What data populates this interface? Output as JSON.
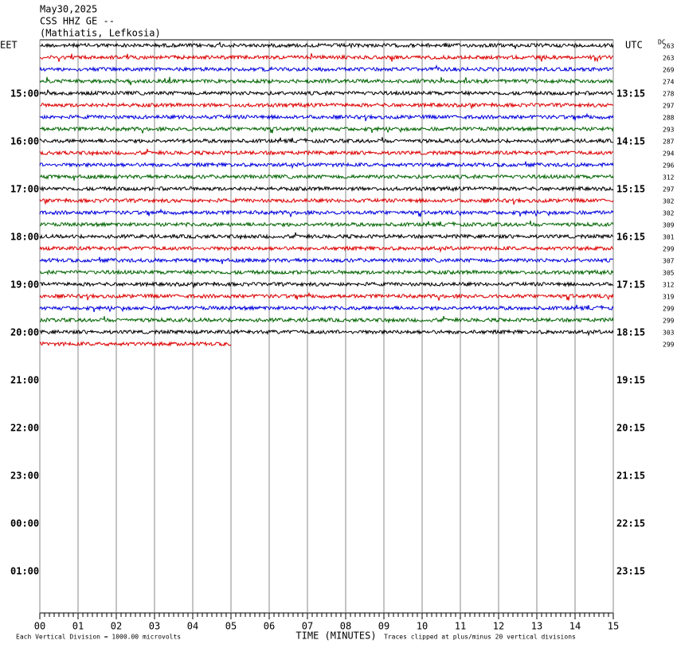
{
  "header": {
    "date": "May30,2025",
    "station": "CSS HHZ GE --",
    "location": "(Mathiatis, Lefkosia)"
  },
  "left_zone": "EET",
  "right_zone": "UTC",
  "dc_label": "DC",
  "left_times": [
    "15:00",
    "16:00",
    "17:00",
    "18:00",
    "19:00",
    "20:00",
    "21:00",
    "22:00",
    "23:00",
    "00:00",
    "01:00"
  ],
  "right_times": [
    "13:15",
    "14:15",
    "15:15",
    "16:15",
    "17:15",
    "18:15",
    "19:15",
    "20:15",
    "21:15",
    "22:15",
    "23:15"
  ],
  "dc_values": [
    "263",
    "263",
    "269",
    "274",
    "278",
    "297",
    "288",
    "293",
    "287",
    "294",
    "296",
    "312",
    "297",
    "302",
    "302",
    "309",
    "301",
    "299",
    "307",
    "305",
    "312",
    "319",
    "299",
    "299",
    "303",
    "299"
  ],
  "trace_colors": [
    "#000000",
    "#dd0000",
    "#0000dd",
    "#006400"
  ],
  "last_trace_minutes": 5,
  "x_ticks": [
    "00",
    "01",
    "02",
    "03",
    "04",
    "05",
    "06",
    "07",
    "08",
    "09",
    "10",
    "11",
    "12",
    "13",
    "14",
    "15"
  ],
  "x_label": "TIME (MINUTES)",
  "footnote_left": "Each Vertical Division = 1000.00 microvolts",
  "footnote_right": "Traces clipped at plus/minus 20 vertical divisions"
}
